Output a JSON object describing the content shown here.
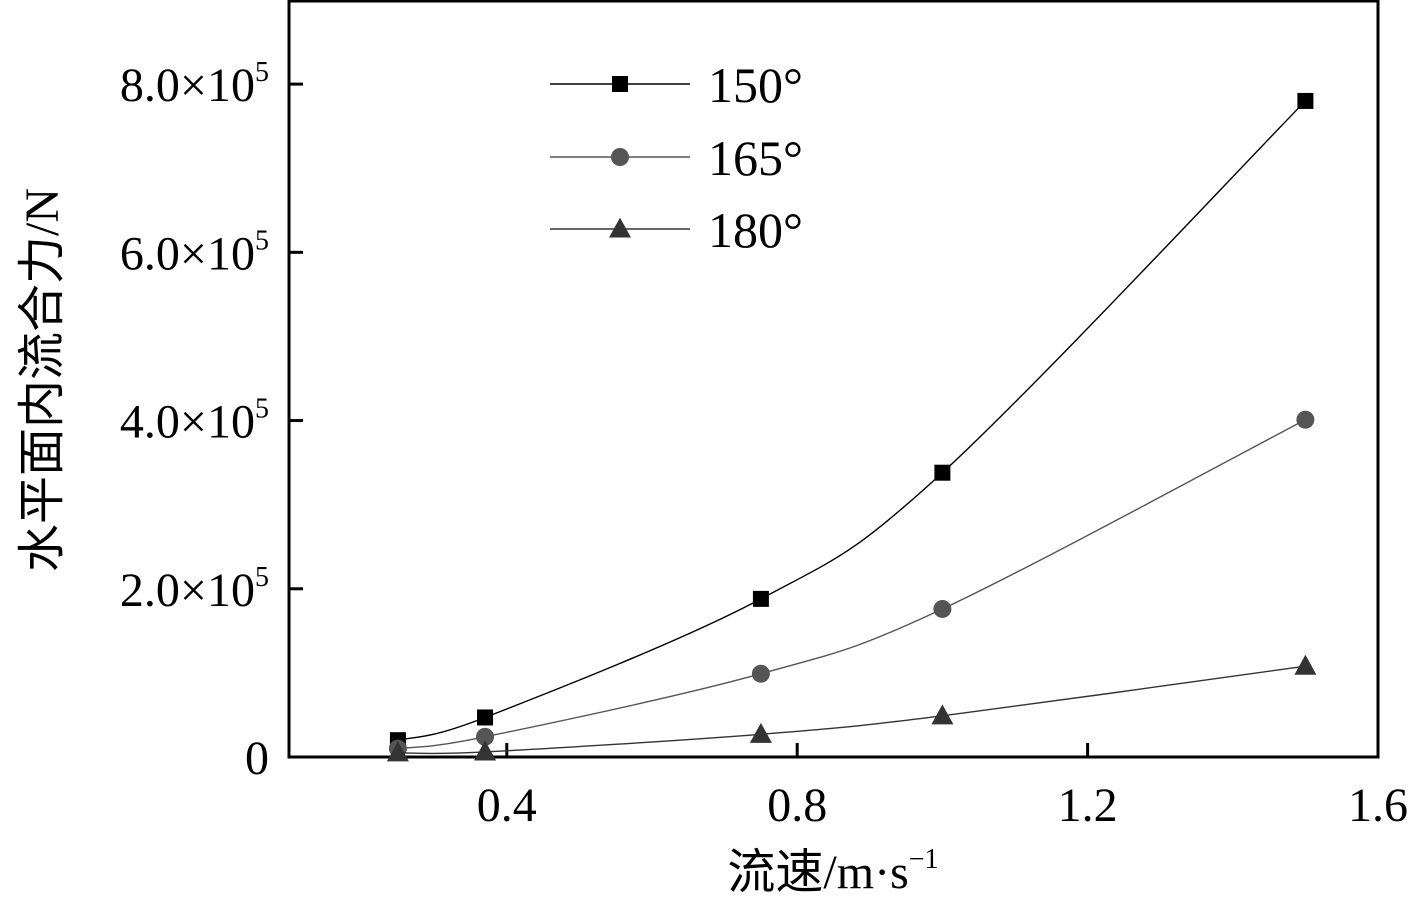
{
  "chart_data": {
    "type": "line",
    "title": "",
    "xlabel": "流速/m·s",
    "xlabel_sup": "−1",
    "ylabel": "水平面内流合力/N",
    "xlim": [
      0.1,
      1.6
    ],
    "ylim": [
      0,
      900000
    ],
    "x_ticks": [
      {
        "value": 0.4,
        "label": "0.4"
      },
      {
        "value": 0.8,
        "label": "0.8"
      },
      {
        "value": 1.2,
        "label": "1.2"
      },
      {
        "value": 1.6,
        "label": "1.6"
      }
    ],
    "y_ticks": [
      {
        "value": 0,
        "label": "0",
        "sup": ""
      },
      {
        "value": 200000,
        "label": "2.0×10",
        "sup": "5"
      },
      {
        "value": 400000,
        "label": "4.0×10",
        "sup": "5"
      },
      {
        "value": 600000,
        "label": "6.0×10",
        "sup": "5"
      },
      {
        "value": 800000,
        "label": "8.0×10",
        "sup": "5"
      }
    ],
    "grid": false,
    "legend_position": "top-center",
    "series": [
      {
        "name": "150°",
        "marker": "square",
        "color": "#000000",
        "x": [
          0.25,
          0.37,
          0.75,
          1.0,
          1.5
        ],
        "y": [
          20000,
          47000,
          188000,
          338000,
          780000
        ]
      },
      {
        "name": "165°",
        "marker": "circle",
        "color": "#555555",
        "x": [
          0.25,
          0.37,
          0.75,
          1.0,
          1.5
        ],
        "y": [
          10000,
          24000,
          99000,
          176000,
          401000
        ]
      },
      {
        "name": "180°",
        "marker": "triangle",
        "color": "#333333",
        "x": [
          0.25,
          0.37,
          0.75,
          1.0,
          1.5
        ],
        "y": [
          5000,
          6000,
          27000,
          49000,
          108000
        ]
      }
    ]
  }
}
